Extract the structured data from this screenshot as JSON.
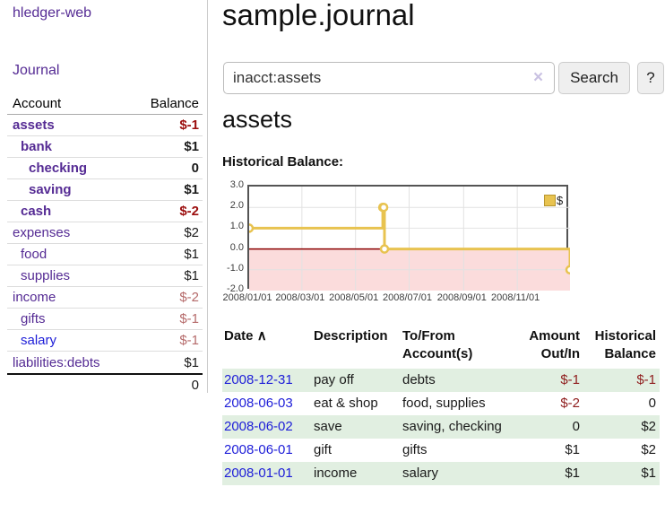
{
  "sidebar": {
    "brand": "hledger-web",
    "nav_journal": "Journal",
    "table": {
      "header": {
        "account": "Account",
        "balance": "Balance"
      },
      "rows": [
        {
          "name": "assets",
          "balance": "$-1"
        },
        {
          "name": "bank",
          "balance": "$1"
        },
        {
          "name": "checking",
          "balance": "0"
        },
        {
          "name": "saving",
          "balance": "$1"
        },
        {
          "name": "cash",
          "balance": "$-2"
        },
        {
          "name": "expenses",
          "balance": "$2"
        },
        {
          "name": "food",
          "balance": "$1"
        },
        {
          "name": "supplies",
          "balance": "$1"
        },
        {
          "name": "income",
          "balance": "$-2"
        },
        {
          "name": "gifts",
          "balance": "$-1"
        },
        {
          "name": "salary",
          "balance": "$-1"
        },
        {
          "name": "liabilities:debts",
          "balance": "$1"
        }
      ],
      "total": "0"
    }
  },
  "header": {
    "title": "sample.journal"
  },
  "search": {
    "value": "inacct:assets",
    "clear_icon": "×",
    "button_label": "Search",
    "help_label": "?"
  },
  "account_page": {
    "title": "assets",
    "chart_label": "Historical Balance:"
  },
  "chart_data": {
    "type": "line",
    "step": true,
    "title": "Historical Balance",
    "series": [
      {
        "name": "$",
        "points": [
          [
            "2008-01-01",
            1
          ],
          [
            "2008-06-01",
            2
          ],
          [
            "2008-06-02",
            2
          ],
          [
            "2008-06-03",
            0
          ],
          [
            "2008-12-31",
            -1
          ]
        ]
      }
    ],
    "xrange": [
      "2008-01-01",
      "2008-12-31"
    ],
    "ylim": [
      -2,
      3
    ],
    "yticks": [
      3.0,
      2.0,
      1.0,
      0.0,
      -1.0,
      -2.0
    ],
    "xticks": [
      "2008/01/01",
      "2008/03/01",
      "2008/05/01",
      "2008/07/01",
      "2008/09/01",
      "2008/11/01"
    ],
    "legend_position": "top-right",
    "grid": true,
    "line_color": "#e8c350",
    "negative_fill": "#fbdcdc",
    "zero_line_color": "#8b0000"
  },
  "register": {
    "headers": {
      "date": "Date",
      "sort_indicator": "∧",
      "description": "Description",
      "account_line1": "To/From",
      "account_line2": "Account(s)",
      "amount_line1": "Amount",
      "amount_line2": "Out/In",
      "balance_line1": "Historical",
      "balance_line2": "Balance"
    },
    "rows": [
      {
        "date": "2008-12-31",
        "description": "pay off",
        "accounts": "debts",
        "amount": "$-1",
        "balance": "$-1"
      },
      {
        "date": "2008-06-03",
        "description": "eat & shop",
        "accounts": "food, supplies",
        "amount": "$-2",
        "balance": "0"
      },
      {
        "date": "2008-06-02",
        "description": "save",
        "accounts": "saving, checking",
        "amount": "0",
        "balance": "$2"
      },
      {
        "date": "2008-06-01",
        "description": "gift",
        "accounts": "gifts",
        "amount": "$1",
        "balance": "$2"
      },
      {
        "date": "2008-01-01",
        "description": "income",
        "accounts": "salary",
        "amount": "$1",
        "balance": "$1"
      }
    ]
  }
}
